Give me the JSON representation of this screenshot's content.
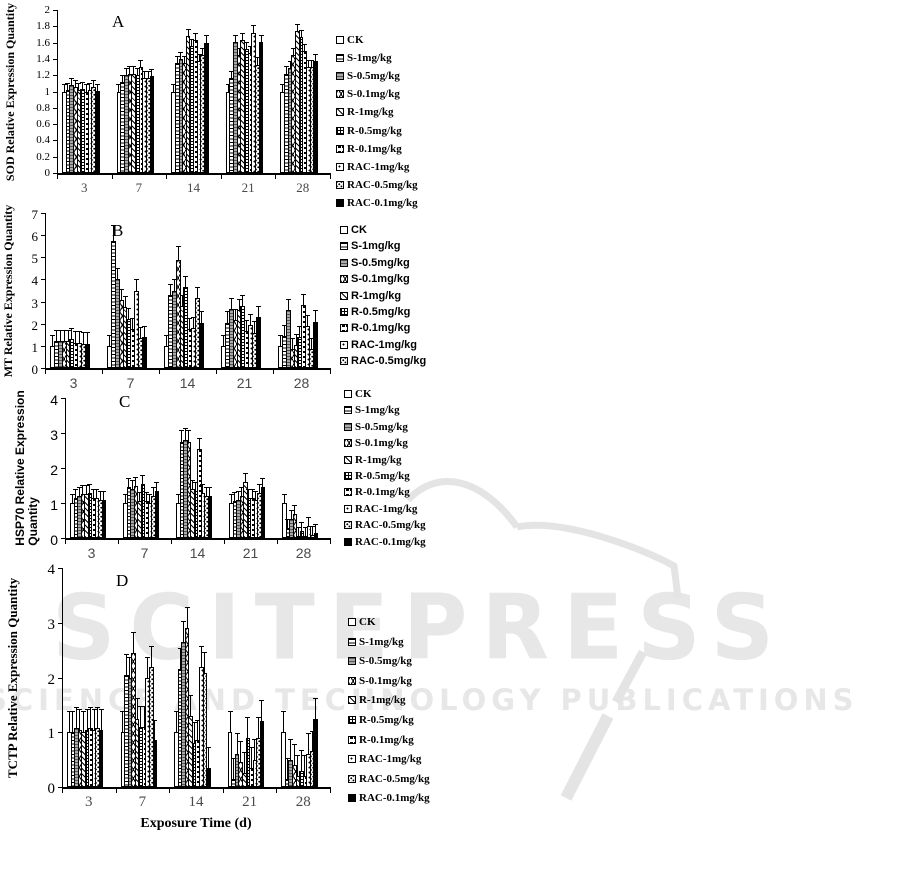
{
  "watermark": {
    "title": "SCITEPRESS",
    "subtitle": "SCIENCE AND TECHNOLOGY PUBLICATIONS",
    "color": "#e7e7e7"
  },
  "series_labels": [
    "CK",
    "S-1mg/kg",
    "S-0.5mg/kg",
    "S-0.1mg/kg",
    "R-1mg/kg",
    "R-0.5mg/kg",
    "R-0.1mg/kg",
    "RAC-1mg/kg",
    "RAC-0.5mg/kg",
    "RAC-0.1mg/kg"
  ],
  "fill_patterns": [
    "plain-white",
    "horizontal-stripes",
    "solid-gray-stripes",
    "chevron-mesh",
    "diagonal-hatch",
    "fine-grid",
    "horizontal-dashes",
    "dots-sparse",
    "dots-dense",
    "solid-black"
  ],
  "chart_data": [
    {
      "id": "A",
      "type": "bar",
      "panel_label": "A",
      "ylabel": "SOD Relative Expression Quantity",
      "ylabel_lines": [
        "SOD Relative Expression Quantity"
      ],
      "xlabel": "",
      "categories": [
        "3",
        "7",
        "14",
        "21",
        "28"
      ],
      "ylim": [
        0,
        2
      ],
      "yticks": [
        "2",
        "1.8",
        "1.6",
        "1.4",
        "1.2",
        "1",
        "0.8",
        "0.6",
        "0.4",
        "0.2",
        "0"
      ],
      "legend_count": 10,
      "legend_position": "right",
      "grid": false,
      "error_model": {
        "fraction": 0.06,
        "min_units": 0.1
      },
      "series": [
        {
          "name": "CK",
          "values": [
            1.0,
            1.0,
            1.0,
            1.0,
            1.0
          ]
        },
        {
          "name": "S-1mg/kg",
          "values": [
            1.02,
            1.12,
            1.35,
            1.17,
            1.22
          ]
        },
        {
          "name": "S-0.5mg/kg",
          "values": [
            1.08,
            1.2,
            1.4,
            1.61,
            1.29
          ]
        },
        {
          "name": "S-0.1mg/kg",
          "values": [
            1.05,
            1.22,
            1.35,
            1.45,
            1.45
          ]
        },
        {
          "name": "R-1mg/kg",
          "values": [
            1.02,
            1.22,
            1.68,
            1.63,
            1.74
          ]
        },
        {
          "name": "R-0.5mg/kg",
          "values": [
            1.03,
            1.2,
            1.56,
            1.52,
            1.67
          ]
        },
        {
          "name": "R-0.1mg/kg",
          "values": [
            1.0,
            1.3,
            1.63,
            1.47,
            1.5
          ]
        },
        {
          "name": "RAC-1mg/kg",
          "values": [
            1.02,
            1.17,
            1.37,
            1.72,
            1.3
          ]
        },
        {
          "name": "RAC-0.5mg/kg",
          "values": [
            1.05,
            1.17,
            1.45,
            1.33,
            1.3
          ]
        },
        {
          "name": "RAC-0.1mg/kg",
          "values": [
            1.01,
            1.19,
            1.6,
            1.61,
            1.37
          ]
        }
      ]
    },
    {
      "id": "B",
      "type": "bar",
      "panel_label": "B",
      "ylabel": "MT Relative Expression Quantity",
      "ylabel_lines": [
        "MT Relative Expression Quantity"
      ],
      "xlabel": "",
      "categories": [
        "3",
        "7",
        "14",
        "21",
        "28"
      ],
      "ylim": [
        0,
        7
      ],
      "yticks": [
        "7",
        "6",
        "5",
        "4",
        "3",
        "2",
        "1",
        "0"
      ],
      "legend_count": 9,
      "legend_position": "right",
      "grid": false,
      "error_model": {
        "fraction": 0.13,
        "min_units": 0.55
      },
      "series": [
        {
          "name": "CK",
          "values": [
            1.0,
            1.0,
            1.0,
            1.0,
            1.0
          ]
        },
        {
          "name": "S-1mg/kg",
          "values": [
            1.2,
            5.75,
            3.3,
            2.05,
            1.45
          ]
        },
        {
          "name": "S-0.5mg/kg",
          "values": [
            1.2,
            4.0,
            3.5,
            2.65,
            2.6
          ]
        },
        {
          "name": "S-0.1mg/kg",
          "values": [
            1.2,
            3.05,
            4.9,
            2.15,
            0.85
          ]
        },
        {
          "name": "R-1mg/kg",
          "values": [
            1.2,
            2.75,
            2.8,
            2.6,
            1.05
          ]
        },
        {
          "name": "R-0.5mg/kg",
          "values": [
            1.3,
            2.2,
            3.65,
            2.8,
            1.4
          ]
        },
        {
          "name": "R-0.1mg/kg",
          "values": [
            1.15,
            1.75,
            1.75,
            1.65,
            2.85
          ]
        },
        {
          "name": "RAC-1mg/kg",
          "values": [
            1.15,
            3.5,
            1.8,
            1.95,
            1.9
          ]
        },
        {
          "name": "RAC-0.5mg/kg",
          "values": [
            1.1,
            1.35,
            3.15,
            1.6,
            0.85
          ]
        },
        {
          "name": "RAC-0.1mg/kg",
          "values": [
            1.1,
            1.4,
            2.05,
            2.3,
            2.1
          ]
        }
      ]
    },
    {
      "id": "C",
      "type": "bar",
      "panel_label": "C",
      "ylabel": "HSP70 Relative Expression Quantity",
      "ylabel_lines": [
        "HSP70 Relative Expression",
        "Quantity"
      ],
      "xlabel": "",
      "categories": [
        "3",
        "7",
        "14",
        "21",
        "28"
      ],
      "ylim": [
        0,
        4
      ],
      "yticks": [
        "4",
        "3",
        "2",
        "1",
        "0"
      ],
      "legend_count": 10,
      "legend_position": "right",
      "grid": false,
      "error_model": {
        "fraction": 0.13,
        "min_units": 0.28
      },
      "series": [
        {
          "name": "CK",
          "values": [
            1.0,
            1.0,
            1.0,
            1.0,
            1.0
          ]
        },
        {
          "name": "S-1mg/kg",
          "values": [
            1.15,
            1.45,
            2.75,
            1.05,
            0.3
          ]
        },
        {
          "name": "S-0.5mg/kg",
          "values": [
            1.2,
            1.4,
            2.8,
            1.1,
            0.55
          ]
        },
        {
          "name": "S-0.1mg/kg",
          "values": [
            1.25,
            1.5,
            2.75,
            1.2,
            0.7
          ]
        },
        {
          "name": "R-1mg/kg",
          "values": [
            1.25,
            1.05,
            1.4,
            1.6,
            0.05
          ]
        },
        {
          "name": "R-0.5mg/kg",
          "values": [
            1.3,
            1.55,
            1.35,
            1.15,
            0.2
          ]
        },
        {
          "name": "R-0.1mg/kg",
          "values": [
            1.15,
            1.05,
            2.55,
            1.15,
            0.05
          ]
        },
        {
          "name": "RAC-1mg/kg",
          "values": [
            1.15,
            1.0,
            1.3,
            1.1,
            0.35
          ]
        },
        {
          "name": "RAC-0.5mg/kg",
          "values": [
            1.1,
            1.2,
            1.2,
            1.3,
            0.1
          ]
        },
        {
          "name": "RAC-0.1mg/kg",
          "values": [
            1.1,
            1.35,
            1.2,
            1.45,
            0.15
          ]
        }
      ]
    },
    {
      "id": "D",
      "type": "bar",
      "panel_label": "D",
      "ylabel": "TCTP Relative Expression Quantity",
      "ylabel_lines": [
        "TCTP Relative Expression Quantity"
      ],
      "xlabel": "Exposure Time (d)",
      "categories": [
        "3",
        "7",
        "14",
        "21",
        "28"
      ],
      "ylim": [
        0,
        4
      ],
      "yticks": [
        "4",
        "3",
        "2",
        "1",
        "0"
      ],
      "legend_count": 10,
      "legend_position": "right",
      "grid": false,
      "error_model": {
        "fraction": 0.12,
        "min_units": 0.4
      },
      "series": [
        {
          "name": "CK",
          "values": [
            1.0,
            1.0,
            1.0,
            1.0,
            1.0
          ]
        },
        {
          "name": "S-1mg/kg",
          "values": [
            1.0,
            2.05,
            2.15,
            0.15,
            0.15
          ]
        },
        {
          "name": "S-0.5mg/kg",
          "values": [
            1.08,
            2.0,
            2.65,
            0.6,
            0.5
          ]
        },
        {
          "name": "S-0.1mg/kg",
          "values": [
            1.05,
            2.45,
            2.9,
            0.45,
            0.4
          ]
        },
        {
          "name": "R-1mg/kg",
          "values": [
            1.0,
            1.25,
            1.3,
            0.25,
            0.2
          ]
        },
        {
          "name": "R-0.5mg/kg",
          "values": [
            1.05,
            1.1,
            0.8,
            0.9,
            0.3
          ]
        },
        {
          "name": "R-0.1mg/kg",
          "values": [
            1.08,
            1.1,
            0.85,
            0.35,
            0.2
          ]
        },
        {
          "name": "RAC-1mg/kg",
          "values": [
            1.05,
            2.0,
            2.2,
            0.5,
            0.6
          ]
        },
        {
          "name": "RAC-0.5mg/kg",
          "values": [
            1.08,
            2.2,
            2.08,
            0.9,
            0.65
          ]
        },
        {
          "name": "RAC-0.1mg/kg",
          "values": [
            1.05,
            0.85,
            0.35,
            1.2,
            1.25
          ]
        }
      ]
    }
  ]
}
